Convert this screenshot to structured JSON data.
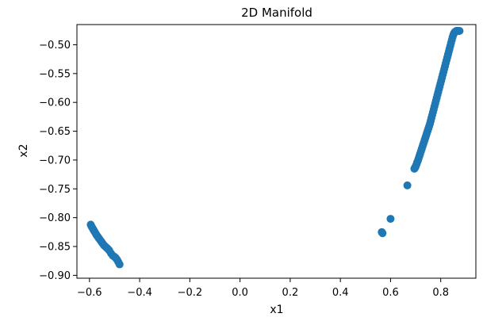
{
  "chart_data": {
    "type": "scatter",
    "title": "2D Manifold",
    "xlabel": "x1",
    "ylabel": "x2",
    "xlim": [
      -0.65,
      0.94
    ],
    "ylim": [
      -0.905,
      -0.465
    ],
    "grid": false,
    "x_ticks": [
      "−0.6",
      "−0.4",
      "−0.2",
      "0.0",
      "0.2",
      "0.4",
      "0.6",
      "0.8"
    ],
    "x_tick_values": [
      -0.6,
      -0.4,
      -0.2,
      0.0,
      0.2,
      0.4,
      0.6,
      0.8
    ],
    "y_ticks": [
      "−0.50",
      "−0.55",
      "−0.60",
      "−0.65",
      "−0.70",
      "−0.75",
      "−0.80",
      "−0.85",
      "−0.90"
    ],
    "y_tick_values": [
      -0.5,
      -0.55,
      -0.6,
      -0.65,
      -0.7,
      -0.75,
      -0.8,
      -0.85,
      -0.9
    ],
    "colors": {
      "point": "#1f77b4"
    },
    "series": [
      {
        "x": [
          -0.595,
          -0.592,
          -0.588,
          -0.584,
          -0.58,
          -0.576,
          -0.572,
          -0.567,
          -0.562,
          -0.557,
          -0.552,
          -0.547,
          -0.542,
          -0.537,
          -0.532,
          -0.527,
          -0.521,
          -0.514,
          -0.507,
          -0.5,
          -0.495,
          -0.49,
          -0.485,
          -0.48,
          0.565,
          0.568,
          0.6,
          0.667,
          0.695,
          0.698,
          0.7,
          0.703,
          0.706,
          0.709,
          0.712,
          0.715,
          0.718,
          0.721,
          0.724,
          0.727,
          0.73,
          0.733,
          0.736,
          0.739,
          0.742,
          0.745,
          0.748,
          0.751,
          0.754,
          0.757,
          0.76,
          0.763,
          0.766,
          0.769,
          0.772,
          0.775,
          0.778,
          0.781,
          0.784,
          0.787,
          0.79,
          0.793,
          0.796,
          0.799,
          0.802,
          0.805,
          0.808,
          0.811,
          0.814,
          0.817,
          0.82,
          0.823,
          0.826,
          0.829,
          0.832,
          0.835,
          0.838,
          0.841,
          0.844,
          0.847,
          0.85,
          0.853,
          0.856,
          0.859,
          0.862,
          0.865,
          0.868,
          0.871,
          0.873,
          0.875
        ],
        "y": [
          -0.812,
          -0.815,
          -0.818,
          -0.821,
          -0.824,
          -0.827,
          -0.83,
          -0.833,
          -0.836,
          -0.839,
          -0.842,
          -0.845,
          -0.848,
          -0.85,
          -0.852,
          -0.854,
          -0.857,
          -0.862,
          -0.866,
          -0.868,
          -0.87,
          -0.873,
          -0.877,
          -0.881,
          -0.825,
          -0.827,
          -0.802,
          -0.744,
          -0.715,
          -0.713,
          -0.711,
          -0.708,
          -0.704,
          -0.701,
          -0.697,
          -0.693,
          -0.689,
          -0.685,
          -0.681,
          -0.677,
          -0.673,
          -0.669,
          -0.665,
          -0.661,
          -0.657,
          -0.653,
          -0.649,
          -0.645,
          -0.641,
          -0.637,
          -0.632,
          -0.627,
          -0.622,
          -0.617,
          -0.612,
          -0.607,
          -0.602,
          -0.597,
          -0.592,
          -0.587,
          -0.582,
          -0.577,
          -0.572,
          -0.567,
          -0.562,
          -0.557,
          -0.552,
          -0.547,
          -0.542,
          -0.537,
          -0.532,
          -0.527,
          -0.522,
          -0.517,
          -0.512,
          -0.507,
          -0.502,
          -0.497,
          -0.492,
          -0.487,
          -0.483,
          -0.48,
          -0.478,
          -0.477,
          -0.476,
          -0.476,
          -0.476,
          -0.476,
          -0.476,
          -0.476
        ]
      }
    ]
  }
}
